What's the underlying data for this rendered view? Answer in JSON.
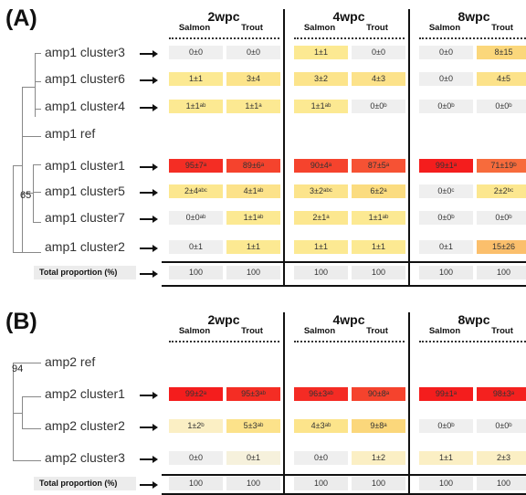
{
  "panels": [
    {
      "label": "(A)",
      "weeks": [
        "2wpc",
        "4wpc",
        "8wpc"
      ],
      "species": [
        "Salmon",
        "Trout"
      ],
      "bootstrap": "65",
      "rows": [
        {
          "name": "amp1 cluster3",
          "arrow": true,
          "cells": [
            {
              "text": "0±0",
              "color": "#efefef"
            },
            {
              "text": "0±0",
              "color": "#efefef"
            },
            {
              "text": "1±1",
              "color": "#fce992"
            },
            {
              "text": "0±0",
              "color": "#efefef"
            },
            {
              "text": "0±0",
              "color": "#efefef"
            },
            {
              "text": "8±15",
              "color": "#fbd77b"
            }
          ]
        },
        {
          "name": "amp1 cluster6",
          "arrow": true,
          "cells": [
            {
              "text": "1±1",
              "color": "#fce992"
            },
            {
              "text": "3±4",
              "color": "#fce48b"
            },
            {
              "text": "3±2",
              "color": "#fce48b"
            },
            {
              "text": "4±3",
              "color": "#fce28a"
            },
            {
              "text": "0±0",
              "color": "#efefef"
            },
            {
              "text": "4±5",
              "color": "#fce28a"
            }
          ]
        },
        {
          "name": "amp1 cluster4",
          "arrow": true,
          "cells": [
            {
              "text": "1±1ᵃᵇ",
              "color": "#fce992"
            },
            {
              "text": "1±1ᵃ",
              "color": "#fce992"
            },
            {
              "text": "1±1ᵃᵇ",
              "color": "#fce992"
            },
            {
              "text": "0±0ᵇ",
              "color": "#efefef"
            },
            {
              "text": "0±0ᵇ",
              "color": "#efefef"
            },
            {
              "text": "0±0ᵇ",
              "color": "#efefef"
            }
          ]
        },
        {
          "name": "amp1 ref",
          "arrow": false,
          "cells": []
        },
        {
          "name": "amp1 cluster1",
          "arrow": true,
          "cells": [
            {
              "text": "95±7ᵃ",
              "color": "#f42d24"
            },
            {
              "text": "89±6ᵃ",
              "color": "#f5432d"
            },
            {
              "text": "90±4ᵃ",
              "color": "#f5432d"
            },
            {
              "text": "87±5ᵃ",
              "color": "#f65234"
            },
            {
              "text": "99±1ᵃ",
              "color": "#f41d1d"
            },
            {
              "text": "71±19ᵇ",
              "color": "#f76b3c"
            }
          ]
        },
        {
          "name": "amp1 cluster5",
          "arrow": true,
          "cells": [
            {
              "text": "2±4ᵃᵇᶜ",
              "color": "#fce78f"
            },
            {
              "text": "4±1ᵃᵇ",
              "color": "#fce28a"
            },
            {
              "text": "3±2ᵃᵇᶜ",
              "color": "#fce48b"
            },
            {
              "text": "6±2ᵃ",
              "color": "#fbdc80"
            },
            {
              "text": "0±0ᶜ",
              "color": "#efefef"
            },
            {
              "text": "2±2ᵇᶜ",
              "color": "#fce78f"
            }
          ]
        },
        {
          "name": "amp1 cluster7",
          "arrow": true,
          "cells": [
            {
              "text": "0±0ᵃᵇ",
              "color": "#efefef"
            },
            {
              "text": "1±1ᵃᵇ",
              "color": "#fce992"
            },
            {
              "text": "2±1ᵃ",
              "color": "#fce78f"
            },
            {
              "text": "1±1ᵃᵇ",
              "color": "#fce992"
            },
            {
              "text": "0±0ᵇ",
              "color": "#efefef"
            },
            {
              "text": "0±0ᵇ",
              "color": "#efefef"
            }
          ]
        },
        {
          "name": "amp1 cluster2",
          "arrow": true,
          "cells": [
            {
              "text": "0±1",
              "color": "#efefef"
            },
            {
              "text": "1±1",
              "color": "#fce992"
            },
            {
              "text": "1±1",
              "color": "#fce992"
            },
            {
              "text": "1±1",
              "color": "#fce992"
            },
            {
              "text": "0±1",
              "color": "#efefef"
            },
            {
              "text": "15±26",
              "color": "#fbbf6c"
            }
          ]
        }
      ],
      "total": {
        "label": "Total proportion (%)",
        "values": [
          "100",
          "100",
          "100",
          "100",
          "100",
          "100"
        ]
      }
    },
    {
      "label": "(B)",
      "weeks": [
        "2wpc",
        "4wpc",
        "8wpc"
      ],
      "species": [
        "Salmon",
        "Trout"
      ],
      "bootstrap": "94",
      "rows": [
        {
          "name": "amp2 ref",
          "arrow": false,
          "cells": []
        },
        {
          "name": "amp2 cluster1",
          "arrow": true,
          "cells": [
            {
              "text": "99±2ᵃ",
              "color": "#f41d1d"
            },
            {
              "text": "95±3ᵃᵇ",
              "color": "#f42d24"
            },
            {
              "text": "96±3ᵃᵇ",
              "color": "#f42b24"
            },
            {
              "text": "90±8ᵃ",
              "color": "#f5432d"
            },
            {
              "text": "99±1ᵃ",
              "color": "#f41d1d"
            },
            {
              "text": "98±3ᵃ",
              "color": "#f4211f"
            }
          ]
        },
        {
          "name": "amp2 cluster2",
          "arrow": true,
          "cells": [
            {
              "text": "1±2ᵇ",
              "color": "#fbefc4"
            },
            {
              "text": "5±3ᵃᵇ",
              "color": "#fce28a"
            },
            {
              "text": "4±3ᵃᵇ",
              "color": "#fce48b"
            },
            {
              "text": "9±8ᵃ",
              "color": "#fbd77b"
            },
            {
              "text": "0±0ᵇ",
              "color": "#efefef"
            },
            {
              "text": "0±0ᵇ",
              "color": "#efefef"
            }
          ]
        },
        {
          "name": "amp2 cluster3",
          "arrow": true,
          "cells": [
            {
              "text": "0±0",
              "color": "#efefef"
            },
            {
              "text": "0±1",
              "color": "#f6f1dc"
            },
            {
              "text": "0±0",
              "color": "#efefef"
            },
            {
              "text": "1±2",
              "color": "#fbefc4"
            },
            {
              "text": "1±1",
              "color": "#fbefc4"
            },
            {
              "text": "2±3",
              "color": "#fbefc4"
            }
          ]
        }
      ],
      "total": {
        "label": "Total proportion (%)",
        "values": [
          "100",
          "100",
          "100",
          "100",
          "100",
          "100"
        ]
      }
    }
  ]
}
